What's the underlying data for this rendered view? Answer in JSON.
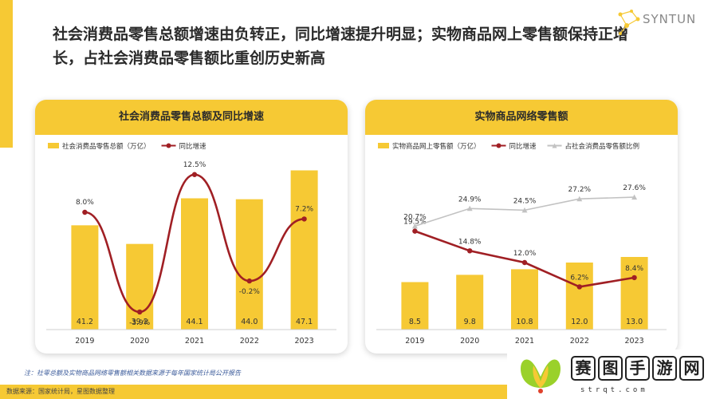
{
  "headline": "社会消费品零售总额增速由负转正，同比增速提升明显；实物商品网上零售额保持正增长，占社会消费品零售额比重创历史新高",
  "logo": {
    "text": "SYNTUN"
  },
  "footnote": "注：社零总额及实物商品网络零售额相关数据来源于每年国家统计局公开报告",
  "source": "数据来源：国家统计局，星图数据整理",
  "watermark": {
    "chars": [
      "赛",
      "图",
      "手",
      "游",
      "网"
    ],
    "sub": "strqt.com"
  },
  "colors": {
    "bar": "#f6c934",
    "line": "#a01f24",
    "share": "#c2c2c2",
    "header": "#f6c934"
  },
  "chart_data": [
    {
      "type": "bar",
      "title": "社会消费品零售总额及同比增速",
      "categories": [
        "2019",
        "2020",
        "2021",
        "2022",
        "2023"
      ],
      "legend_position": "top-left",
      "series": [
        {
          "name": "社会消费品零售总额（万亿）",
          "type": "bar",
          "values": [
            41.2,
            39.2,
            44.1,
            44.0,
            47.1
          ],
          "labels": [
            "41.2",
            "39.2",
            "44.1",
            "44.0",
            "47.1"
          ],
          "ylim": [
            30,
            48
          ]
        },
        {
          "name": "同比增速",
          "type": "line",
          "values": [
            8.0,
            -3.9,
            12.5,
            -0.2,
            7.2
          ],
          "labels": [
            "8.0%",
            "-3.9%",
            "12.5%",
            "-0.2%",
            "7.2%"
          ],
          "ylim": [
            -6,
            14
          ]
        }
      ]
    },
    {
      "type": "bar",
      "title": "实物商品网络零售额",
      "categories": [
        "2019",
        "2020",
        "2021",
        "2022",
        "2023"
      ],
      "legend_position": "top-left",
      "series": [
        {
          "name": "实物商品网上零售额（万亿）",
          "type": "bar",
          "values": [
            8.5,
            9.8,
            10.8,
            12.0,
            13.0
          ],
          "labels": [
            "8.5",
            "9.8",
            "10.8",
            "12.0",
            "13.0"
          ],
          "ylim": [
            0,
            30
          ]
        },
        {
          "name": "同比增速",
          "type": "line",
          "values": [
            19.5,
            14.8,
            12.0,
            6.2,
            8.4
          ],
          "labels": [
            "19.5%",
            "14.8%",
            "12.0%",
            "6.2%",
            "8.4%"
          ],
          "ylim": [
            -4,
            36
          ]
        },
        {
          "name": "占社会消费品零售额比例",
          "type": "line",
          "values": [
            20.7,
            24.9,
            24.5,
            27.2,
            27.6
          ],
          "labels": [
            "20.7%",
            "24.9%",
            "24.5%",
            "27.2%",
            "27.6%"
          ],
          "ylim": [
            -4,
            36
          ]
        }
      ]
    }
  ]
}
